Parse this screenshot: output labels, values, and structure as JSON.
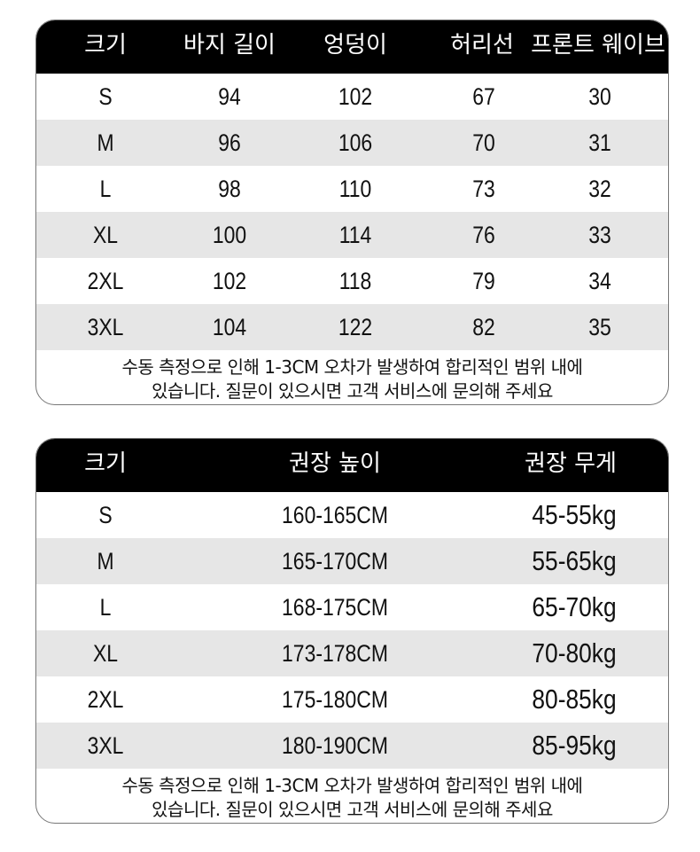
{
  "size_table": {
    "headers": [
      "크기",
      "바지 길이",
      "엉덩이",
      "허리선",
      "프론트 웨이브"
    ],
    "rows": [
      [
        "S",
        "94",
        "102",
        "67",
        "30"
      ],
      [
        "M",
        "96",
        "106",
        "70",
        "31"
      ],
      [
        "L",
        "98",
        "110",
        "73",
        "32"
      ],
      [
        "XL",
        "100",
        "114",
        "76",
        "33"
      ],
      [
        "2XL",
        "102",
        "118",
        "79",
        "34"
      ],
      [
        "3XL",
        "104",
        "122",
        "82",
        "35"
      ]
    ],
    "note_line1": "수동 측정으로 인해 1-3CM 오차가 발생하여 합리적인 범위 내에",
    "note_line2": "있습니다. 질문이 있으시면 고객 서비스에 문의해 주세요"
  },
  "recommend_table": {
    "headers": [
      "크기",
      "권장 높이",
      "권장 무게"
    ],
    "rows": [
      [
        "S",
        "160-165CM",
        "45-55kg"
      ],
      [
        "M",
        "165-170CM",
        "55-65kg"
      ],
      [
        "L",
        "168-175CM",
        "65-70kg"
      ],
      [
        "XL",
        "173-178CM",
        "70-80kg"
      ],
      [
        "2XL",
        "175-180CM",
        "80-85kg"
      ],
      [
        "3XL",
        "180-190CM",
        "85-95kg"
      ]
    ],
    "note_line1": "수동 측정으로 인해 1-3CM 오차가 발생하여 합리적인 범위 내에",
    "note_line2": "있습니다. 질문이 있으시면 고객 서비스에 문의해 주세요"
  }
}
